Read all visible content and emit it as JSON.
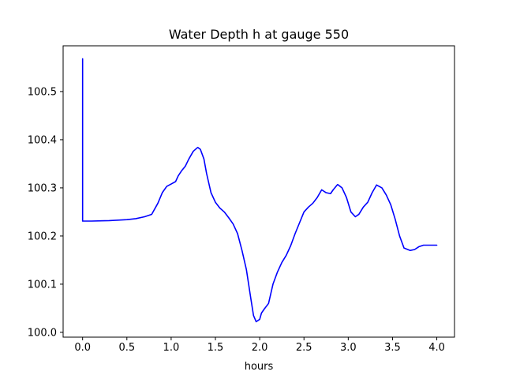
{
  "chart_data": {
    "type": "line",
    "title": "Water Depth h at gauge 550",
    "xlabel": "hours",
    "ylabel": "",
    "xlim": [
      -0.22,
      4.2
    ],
    "ylim": [
      99.99,
      100.595
    ],
    "xticks": [
      0.0,
      0.5,
      1.0,
      1.5,
      2.0,
      2.5,
      3.0,
      3.5,
      4.0
    ],
    "xtick_labels": [
      "0.0",
      "0.5",
      "1.0",
      "1.5",
      "2.0",
      "2.5",
      "3.0",
      "3.5",
      "4.0"
    ],
    "yticks": [
      100.0,
      100.1,
      100.2,
      100.3,
      100.4,
      100.5
    ],
    "ytick_labels": [
      "100.0",
      "100.1",
      "100.2",
      "100.3",
      "100.4",
      "100.5"
    ],
    "grid": false,
    "series": [
      {
        "color": "#0000ff",
        "x": [
          0.0,
          0.0,
          0.1,
          0.3,
          0.5,
          0.6,
          0.7,
          0.78,
          0.85,
          0.9,
          0.95,
          1.0,
          1.05,
          1.08,
          1.12,
          1.16,
          1.2,
          1.25,
          1.3,
          1.33,
          1.37,
          1.4,
          1.45,
          1.5,
          1.55,
          1.6,
          1.65,
          1.7,
          1.75,
          1.8,
          1.85,
          1.9,
          1.93,
          1.96,
          2.0,
          2.02,
          2.05,
          2.1,
          2.15,
          2.2,
          2.25,
          2.3,
          2.35,
          2.4,
          2.5,
          2.55,
          2.6,
          2.65,
          2.7,
          2.75,
          2.8,
          2.83,
          2.88,
          2.93,
          2.98,
          3.03,
          3.08,
          3.12,
          3.17,
          3.22,
          3.27,
          3.32,
          3.38,
          3.43,
          3.48,
          3.53,
          3.58,
          3.63,
          3.7,
          3.75,
          3.8,
          3.85,
          3.9,
          3.95,
          4.0
        ],
        "y": [
          100.568,
          100.231,
          100.231,
          100.232,
          100.234,
          100.236,
          100.24,
          100.245,
          100.268,
          100.29,
          100.303,
          100.308,
          100.313,
          100.325,
          100.336,
          100.345,
          100.36,
          100.376,
          100.384,
          100.38,
          100.36,
          100.33,
          100.29,
          100.27,
          100.258,
          100.25,
          100.238,
          100.225,
          100.205,
          100.17,
          100.13,
          100.07,
          100.035,
          100.022,
          100.027,
          100.04,
          100.048,
          100.06,
          100.1,
          100.125,
          100.145,
          100.16,
          100.18,
          100.205,
          100.25,
          100.26,
          100.268,
          100.28,
          100.296,
          100.29,
          100.288,
          100.296,
          100.307,
          100.3,
          100.28,
          100.25,
          100.24,
          100.245,
          100.26,
          100.27,
          100.29,
          100.306,
          100.3,
          100.285,
          100.265,
          100.235,
          100.2,
          100.175,
          100.17,
          100.172,
          100.178,
          100.181,
          100.181,
          100.181,
          100.181
        ]
      }
    ]
  }
}
